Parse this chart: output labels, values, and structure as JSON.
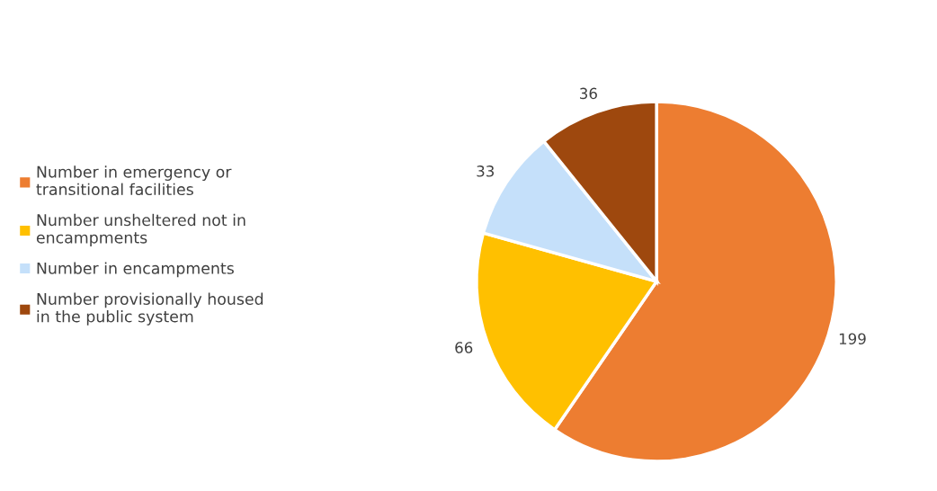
{
  "chart_data": {
    "type": "pie",
    "categories": [
      "Number in emergency or\ntransitional facilities",
      "Number unsheltered not in\nencampments",
      "Number in encampments",
      "Number provisionally housed\nin the public system"
    ],
    "values": [
      199,
      66,
      33,
      36
    ],
    "colors": [
      "#ed7d31",
      "#ffc000",
      "#c5e0fa",
      "#9e480e"
    ],
    "data_labels": true,
    "legend": "left"
  }
}
